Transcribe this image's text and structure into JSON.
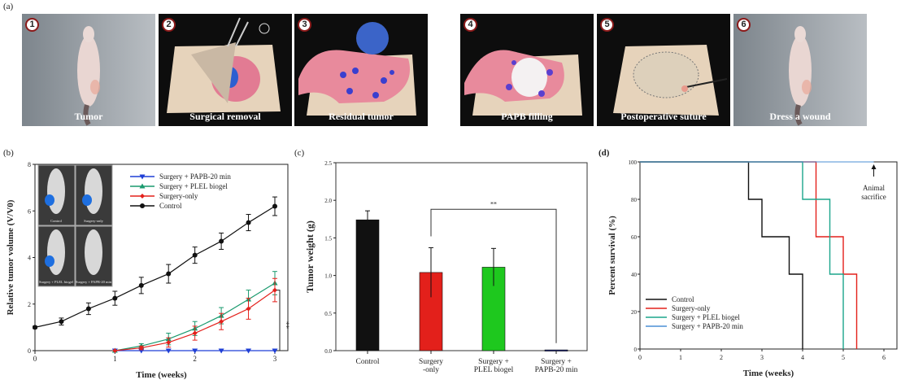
{
  "panel_a": {
    "label": "(a)",
    "steps": [
      {
        "number": "1",
        "caption": "Tumor",
        "scene": "mouse"
      },
      {
        "number": "2",
        "caption": "Surgical removal",
        "scene": "removal"
      },
      {
        "number": "3",
        "caption": "Residual tumor",
        "scene": "residual"
      },
      {
        "number": "4",
        "caption": "PAPB filling",
        "scene": "filling"
      },
      {
        "number": "5",
        "caption": "Postoperative suture",
        "scene": "suture"
      },
      {
        "number": "6",
        "caption": "Dress a wound",
        "scene": "mouse"
      }
    ]
  },
  "colors": {
    "control": "#111111",
    "surgery_only": "#e3201b",
    "plel_b": "#1a9a6e",
    "papb_b": "#1f3fd6",
    "plel_c": "#1ec81e",
    "papb_c": "#1a237e",
    "plel_d": "#1ba58c",
    "papb_d": "#4b8fd6"
  },
  "chart_data": [
    {
      "panel": "(b)",
      "type": "line",
      "xlabel": "Time (weeks)",
      "ylabel": "Relative tumor volume (V/V0)",
      "xlim": [
        0,
        3
      ],
      "ylim": [
        0,
        8
      ],
      "xticks": [
        "0",
        "1",
        "2",
        "3"
      ],
      "yticks": [
        "0",
        "2",
        "4",
        "6",
        "8"
      ],
      "legend_position": "top-right",
      "series": [
        {
          "name": "Surgery + PAPB-20 min",
          "color_key": "papb_b",
          "marker": "triangle-down",
          "x": [
            1,
            1.33,
            1.67,
            2,
            2.33,
            2.67,
            3
          ],
          "y": [
            0,
            0,
            0,
            0,
            0,
            0,
            0
          ],
          "err": [
            0,
            0,
            0,
            0,
            0,
            0,
            0
          ]
        },
        {
          "name": "Surgery + PLEL biogel",
          "color_key": "plel_b",
          "marker": "triangle-up",
          "x": [
            1,
            1.33,
            1.67,
            2,
            2.33,
            2.67,
            3
          ],
          "y": [
            0,
            0.2,
            0.5,
            0.95,
            1.5,
            2.2,
            2.9
          ],
          "err": [
            0,
            0.1,
            0.25,
            0.3,
            0.35,
            0.4,
            0.5
          ]
        },
        {
          "name": "Surgery-only",
          "color_key": "surgery_only",
          "marker": "diamond",
          "x": [
            1,
            1.33,
            1.67,
            2,
            2.33,
            2.67,
            3
          ],
          "y": [
            0,
            0.12,
            0.35,
            0.75,
            1.25,
            1.8,
            2.6
          ],
          "err": [
            0,
            0.08,
            0.2,
            0.3,
            0.35,
            0.45,
            0.5
          ]
        },
        {
          "name": "Control",
          "color_key": "control",
          "marker": "circle",
          "x": [
            0,
            0.33,
            0.67,
            1,
            1.33,
            1.67,
            2,
            2.33,
            2.67,
            3
          ],
          "y": [
            1.0,
            1.25,
            1.8,
            2.25,
            2.8,
            3.3,
            4.1,
            4.7,
            5.5,
            6.2
          ],
          "err": [
            0.05,
            0.15,
            0.25,
            0.3,
            0.35,
            0.4,
            0.35,
            0.35,
            0.35,
            0.4
          ]
        }
      ],
      "significance": "**",
      "inset_labels": [
        "Control",
        "Surgery-only",
        "Surgery + PLEL biogel",
        "Surgery + PAPB-20 min"
      ]
    },
    {
      "panel": "(c)",
      "type": "bar",
      "ylabel": "Tumor weight (g)",
      "ylim": [
        0,
        2.5
      ],
      "yticks": [
        "0.0",
        "0.5",
        "1.0",
        "1.5",
        "2.0",
        "2.5"
      ],
      "categories": [
        [
          "Control"
        ],
        [
          "Surgery",
          "-only"
        ],
        [
          "Surgery +",
          "PLEL biogel"
        ],
        [
          "Surgery +",
          "PAPB-20 min"
        ]
      ],
      "values": [
        1.74,
        1.04,
        1.11,
        0.01
      ],
      "errors": [
        0.12,
        0.33,
        0.25,
        0
      ],
      "color_keys": [
        "control",
        "surgery_only",
        "plel_c",
        "papb_c"
      ],
      "significance": {
        "label": "**",
        "between": [
          1,
          3
        ]
      }
    },
    {
      "panel": "(d)",
      "type": "line",
      "subtype": "kaplan-meier",
      "xlabel": "Time (weeks)",
      "ylabel": "Percent survival (%)",
      "xlim": [
        0,
        6
      ],
      "ylim": [
        0,
        100
      ],
      "xticks": [
        "0",
        "1",
        "2",
        "3",
        "4",
        "5",
        "6"
      ],
      "yticks": [
        "0",
        "20",
        "40",
        "60",
        "80",
        "100"
      ],
      "legend_position": "bottom-left",
      "series": [
        {
          "name": "Control",
          "color_key": "control",
          "steps": [
            [
              0,
              100
            ],
            [
              2.67,
              80
            ],
            [
              3,
              60
            ],
            [
              3.67,
              40
            ],
            [
              4,
              0
            ]
          ]
        },
        {
          "name": "Surgery-only",
          "color_key": "surgery_only",
          "steps": [
            [
              0,
              100
            ],
            [
              4.33,
              60
            ],
            [
              5,
              40
            ],
            [
              5.33,
              0
            ]
          ]
        },
        {
          "name": "Surgery + PLEL biogel",
          "color_key": "plel_d",
          "steps": [
            [
              0,
              100
            ],
            [
              4,
              80
            ],
            [
              4.67,
              40
            ],
            [
              5,
              0
            ]
          ]
        },
        {
          "name": "Surgery + PAPB-20 min",
          "color_key": "papb_d",
          "steps": [
            [
              0,
              100
            ],
            [
              5.75,
              100
            ]
          ]
        }
      ],
      "annotation": {
        "lines": [
          "Animal",
          "sacrifice"
        ],
        "x": 5.75
      }
    }
  ]
}
